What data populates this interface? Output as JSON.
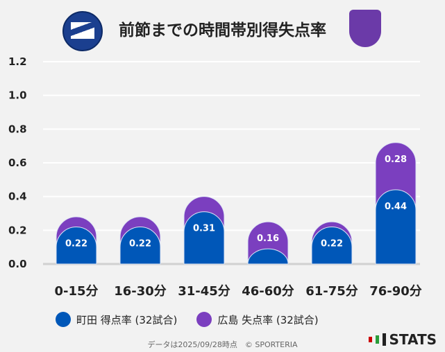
{
  "title": "前節までの時間帯別得失点率",
  "chart_data": {
    "type": "bar",
    "stacked": true,
    "categories": [
      "0-15分",
      "16-30分",
      "31-45分",
      "46-60分",
      "61-75分",
      "76-90分"
    ],
    "series": [
      {
        "name": "町田 得点率 (32試合)",
        "values": [
          0.22,
          0.22,
          0.31,
          0.09,
          0.22,
          0.44
        ],
        "labels": [
          "0.22",
          "0.22",
          "0.31",
          "",
          "0.22",
          "0.44"
        ],
        "color": "#0057b8"
      },
      {
        "name": "広島 失点率 (32試合)",
        "values": [
          0.06,
          0.06,
          0.09,
          0.16,
          0.03,
          0.28
        ],
        "labels": [
          "",
          "",
          "",
          "0.16",
          "",
          "0.28"
        ],
        "color": "#7b3fbf"
      }
    ],
    "ylim": [
      0,
      1.2
    ],
    "yticks": [
      "0.0",
      "0.2",
      "0.4",
      "0.6",
      "0.8",
      "1.0",
      "1.2"
    ],
    "grid": true,
    "legend": "bottom"
  },
  "footer": "データは2025/09/28時点　© SPORTERIA",
  "brand": "STATS"
}
